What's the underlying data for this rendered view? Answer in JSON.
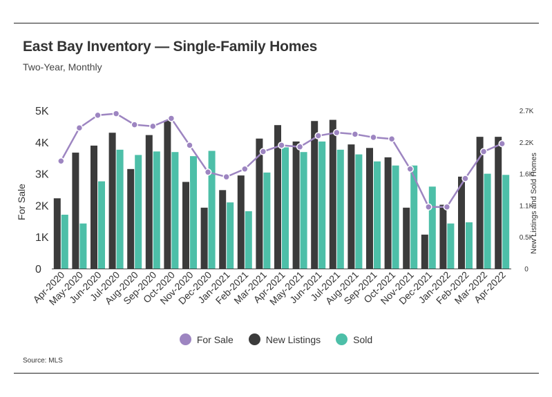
{
  "header": {
    "title": "East Bay Inventory — Single-Family Homes",
    "subtitle": "Two-Year, Monthly"
  },
  "footer": {
    "source": "Source:  MLS"
  },
  "colors": {
    "for_sale": "#9d85c1",
    "new_listings": "#3b3b3b",
    "sold": "#4dbfa8"
  },
  "chart_data": {
    "type": "bar",
    "categories": [
      "Apr-2020",
      "May-2020",
      "Jun-2020",
      "Jul-2020",
      "Aug-2020",
      "Sep-2020",
      "Oct-2020",
      "Nov-2020",
      "Dec-2020",
      "Jan-2021",
      "Feb-2021",
      "Mar-2021",
      "Apr-2021",
      "May-2021",
      "Jun-2021",
      "Jul-2021",
      "Aug-2021",
      "Sep-2021",
      "Oct-2021",
      "Nov-2021",
      "Dec-2021",
      "Jan-2022",
      "Feb-2022",
      "Mar-2022",
      "Apr-2022"
    ],
    "ylabel": "For Sale",
    "y2label": "New Listings and Sold Homes",
    "ylim": [
      0,
      5000
    ],
    "y2lim": [
      0,
      2700
    ],
    "yticks": [
      "0",
      "1K",
      "2K",
      "3K",
      "4K",
      "5K"
    ],
    "y2ticks": [
      "0",
      "0.5K",
      "1.1K",
      "1.6K",
      "2.2K",
      "2.7K"
    ],
    "series": [
      {
        "name": "For Sale",
        "type": "line",
        "axis": "left",
        "values": [
          3400,
          4450,
          4850,
          4900,
          4550,
          4500,
          4750,
          3900,
          3050,
          2900,
          3150,
          3700,
          3900,
          3850,
          4200,
          4300,
          4250,
          4150,
          4100,
          3150,
          1950,
          1950,
          2850,
          3700,
          3950
        ]
      },
      {
        "name": "New Listings",
        "type": "bar",
        "axis": "right",
        "values": [
          1200,
          1980,
          2100,
          2320,
          1700,
          2280,
          2530,
          1480,
          1040,
          1340,
          1590,
          2220,
          2450,
          2170,
          2520,
          2540,
          2120,
          2060,
          1900,
          1040,
          580,
          1090,
          1570,
          2250,
          2250
        ]
      },
      {
        "name": "Sold",
        "type": "bar",
        "axis": "right",
        "values": [
          920,
          770,
          1490,
          2030,
          1940,
          2000,
          1990,
          1920,
          2010,
          1130,
          980,
          1640,
          2070,
          1990,
          2170,
          2030,
          1950,
          1830,
          1760,
          1760,
          1400,
          770,
          790,
          1620,
          1600
        ]
      }
    ],
    "legend_position": "bottom-center"
  }
}
